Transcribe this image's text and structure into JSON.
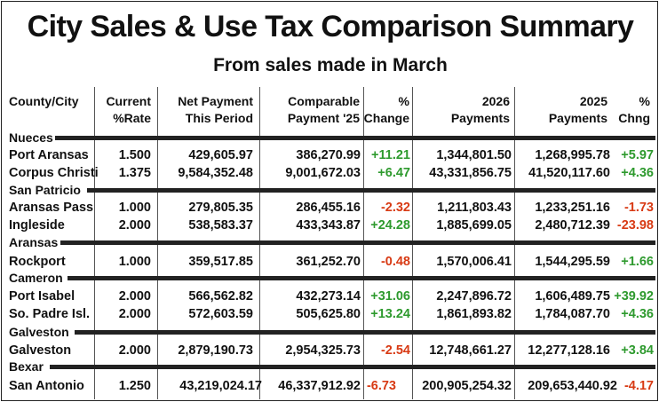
{
  "title": "City Sales & Use Tax Comparison Summary",
  "subtitle": "From sales made in March",
  "headers": {
    "city": [
      "County/City"
    ],
    "rate": [
      "Current",
      "%Rate"
    ],
    "net": [
      "Net Payment",
      "This Period"
    ],
    "comp": [
      "Comparable",
      "Payment '25"
    ],
    "pct": [
      "%",
      "Change"
    ],
    "y2026": [
      "2026",
      "Payments"
    ],
    "y2025": [
      "2025",
      "Payments"
    ],
    "chng": [
      "%",
      "Chng"
    ]
  },
  "groups": [
    {
      "county": "Nueces",
      "rows": [
        {
          "city": "Port Aransas",
          "rate": "1.500",
          "net": "429,605.97",
          "comp": "386,270.99",
          "pct": "+11.21",
          "pct_sign": "pos",
          "y2026": "1,344,801.50",
          "y2025": "1,268,995.78",
          "chng": "+5.97",
          "chng_sign": "pos"
        },
        {
          "city": "Corpus Christi",
          "rate": "1.375",
          "net": "9,584,352.48",
          "comp": "9,001,672.03",
          "pct": "+6.47",
          "pct_sign": "pos",
          "y2026": "43,331,856.75",
          "y2025": "41,520,117.60",
          "chng": "+4.36",
          "chng_sign": "pos"
        }
      ]
    },
    {
      "county": "San Patricio",
      "rows": [
        {
          "city": "Aransas Pass",
          "rate": "1.000",
          "net": "279,805.35",
          "comp": "286,455.16",
          "pct": "-2.32",
          "pct_sign": "neg",
          "y2026": "1,211,803.43",
          "y2025": "1,233,251.16",
          "chng": "-1.73",
          "chng_sign": "neg"
        },
        {
          "city": "Ingleside",
          "rate": "2.000",
          "net": "538,583.37",
          "comp": "433,343.87",
          "pct": "+24.28",
          "pct_sign": "pos",
          "y2026": "1,885,699.05",
          "y2025": "2,480,712.39",
          "chng": "-23.98",
          "chng_sign": "neg"
        }
      ]
    },
    {
      "county": "Aransas",
      "rows": [
        {
          "city": "Rockport",
          "rate": "1.000",
          "net": "359,517.85",
          "comp": "361,252.70",
          "pct": "-0.48",
          "pct_sign": "neg",
          "y2026": "1,570,006.41",
          "y2025": "1,544,295.59",
          "chng": "+1.66",
          "chng_sign": "pos"
        }
      ]
    },
    {
      "county": "Cameron",
      "rows": [
        {
          "city": "Port Isabel",
          "rate": "2.000",
          "net": "566,562.82",
          "comp": "432,273.14",
          "pct": "+31.06",
          "pct_sign": "pos",
          "y2026": "2,247,896.72",
          "y2025": "1,606,489.75",
          "chng": "+39.92",
          "chng_sign": "pos"
        },
        {
          "city": "So. Padre Isl.",
          "rate": "2.000",
          "net": "572,603.59",
          "comp": "505,625.80",
          "pct": "+13.24",
          "pct_sign": "pos",
          "y2026": "1,861,893.82",
          "y2025": "1,784,087.70",
          "chng": "+4.36",
          "chng_sign": "pos"
        }
      ]
    },
    {
      "county": "Galveston",
      "rows": [
        {
          "city": "Galveston",
          "rate": "2.000",
          "net": "2,879,190.73",
          "comp": "2,954,325.73",
          "pct": "-2.54",
          "pct_sign": "neg",
          "y2026": "12,748,661.27",
          "y2025": "12,277,128.16",
          "chng": "+3.84",
          "chng_sign": "pos"
        }
      ]
    },
    {
      "county": "Bexar",
      "rows": [
        {
          "city": "San Antonio",
          "rate": "1.250",
          "net": "43,219,024.17",
          "comp": "46,337,912.92",
          "pct": "-6.73",
          "pct_sign": "neg",
          "y2026": "200,905,254.32",
          "y2025": "209,653,440.92",
          "chng": "-4.17",
          "chng_sign": "neg"
        }
      ]
    }
  ],
  "colors": {
    "positive": "#2e9a2e",
    "negative": "#d83a14",
    "rule": "#222222"
  }
}
